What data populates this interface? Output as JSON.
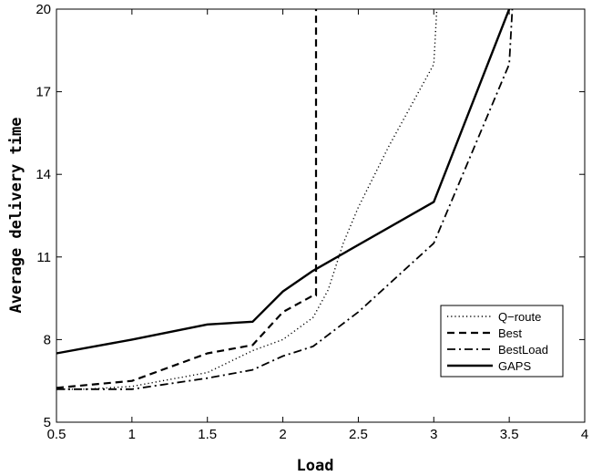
{
  "chart_data": {
    "type": "line",
    "title": "",
    "xlabel": "Load",
    "ylabel": "Average delivery time",
    "xlim": [
      0.5,
      4
    ],
    "ylim": [
      5,
      20
    ],
    "xticks": [
      0.5,
      1,
      1.5,
      2,
      2.5,
      3,
      3.5,
      4
    ],
    "yticks": [
      5,
      8,
      11,
      14,
      17,
      20
    ],
    "xtick_labels": [
      "0.5",
      "1",
      "1.5",
      "2",
      "2.5",
      "3",
      "3.5",
      "4"
    ],
    "ytick_labels": [
      "5",
      "8",
      "11",
      "14",
      "17",
      "20"
    ],
    "grid": false,
    "legend_position": "bottom-right",
    "series": [
      {
        "name": "Q−route",
        "style": "dotted",
        "x": [
          0.5,
          0.7,
          1.0,
          1.5,
          1.8,
          2.0,
          2.2,
          2.3,
          2.4,
          2.5,
          2.7,
          3.0,
          3.02
        ],
        "y": [
          6.2,
          6.2,
          6.3,
          6.8,
          7.6,
          8.0,
          8.8,
          9.8,
          11.5,
          12.8,
          15.0,
          18.0,
          20.0
        ]
      },
      {
        "name": "Best",
        "style": "dashed",
        "x": [
          0.5,
          1.0,
          1.5,
          1.8,
          2.0,
          2.2,
          2.22,
          2.22
        ],
        "y": [
          6.25,
          6.5,
          7.5,
          7.8,
          9.0,
          9.6,
          9.6,
          20.0
        ]
      },
      {
        "name": "BestLoad",
        "style": "dashdot",
        "x": [
          0.5,
          1.0,
          1.5,
          1.8,
          2.0,
          2.2,
          2.5,
          3.0,
          3.5,
          3.52
        ],
        "y": [
          6.2,
          6.2,
          6.6,
          6.9,
          7.4,
          7.75,
          9.0,
          11.5,
          18.0,
          20.0
        ]
      },
      {
        "name": "GAPS",
        "style": "solid",
        "x": [
          0.5,
          1.0,
          1.5,
          1.8,
          2.0,
          2.2,
          3.0,
          3.5
        ],
        "y": [
          7.5,
          8.0,
          8.55,
          8.65,
          9.75,
          10.5,
          13.0,
          20.0
        ]
      }
    ]
  }
}
